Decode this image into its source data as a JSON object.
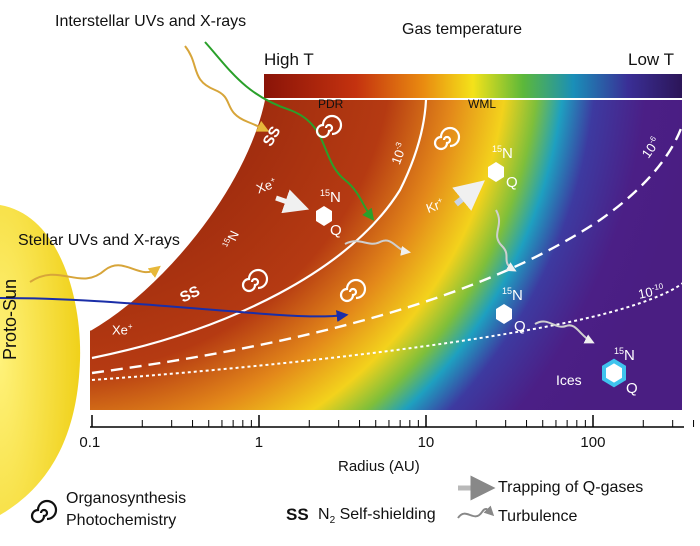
{
  "title": "Gas temperature",
  "colorbar": {
    "high_label": "High T",
    "low_label": "Low T",
    "pdr_label": "PDR",
    "wml_label": "WML"
  },
  "top_label": "Interstellar UVs and X-rays",
  "left_label": "Stellar UVs and X-rays",
  "sun_label": "Proto-Sun",
  "contours": [
    "10",
    "-3",
    "10",
    "-6",
    "10",
    "-10"
  ],
  "regions": {
    "ss": "SS",
    "ices": "Ices"
  },
  "ions": [
    "Xe",
    "+",
    "Kr",
    "+"
  ],
  "isotope": {
    "mass": "15",
    "element": "N",
    "q": "Q"
  },
  "axis": {
    "xlabel": "Radius (AU)",
    "ticks": [
      "0.1",
      "1",
      "10",
      "100"
    ],
    "scale": "log",
    "range": [
      0.1,
      400
    ]
  },
  "legend": {
    "organo_line1": "Organosynthesis",
    "organo_line2": "Photochemistry",
    "ss_symbol": "SS",
    "ss_text_a": "N",
    "ss_text_sub": "2",
    "ss_text_b": " Self-shielding",
    "trapping": "Trapping of Q-gases",
    "turbulence": "Turbulence"
  },
  "colors": {
    "disk_outer": "#4a1e82",
    "disk_inner": "#962414",
    "sun": "#f2dc1a",
    "arrow_green": "#2aa02a",
    "arrow_blue": "#1a2ea8",
    "arrow_orange": "#d7a53a"
  }
}
